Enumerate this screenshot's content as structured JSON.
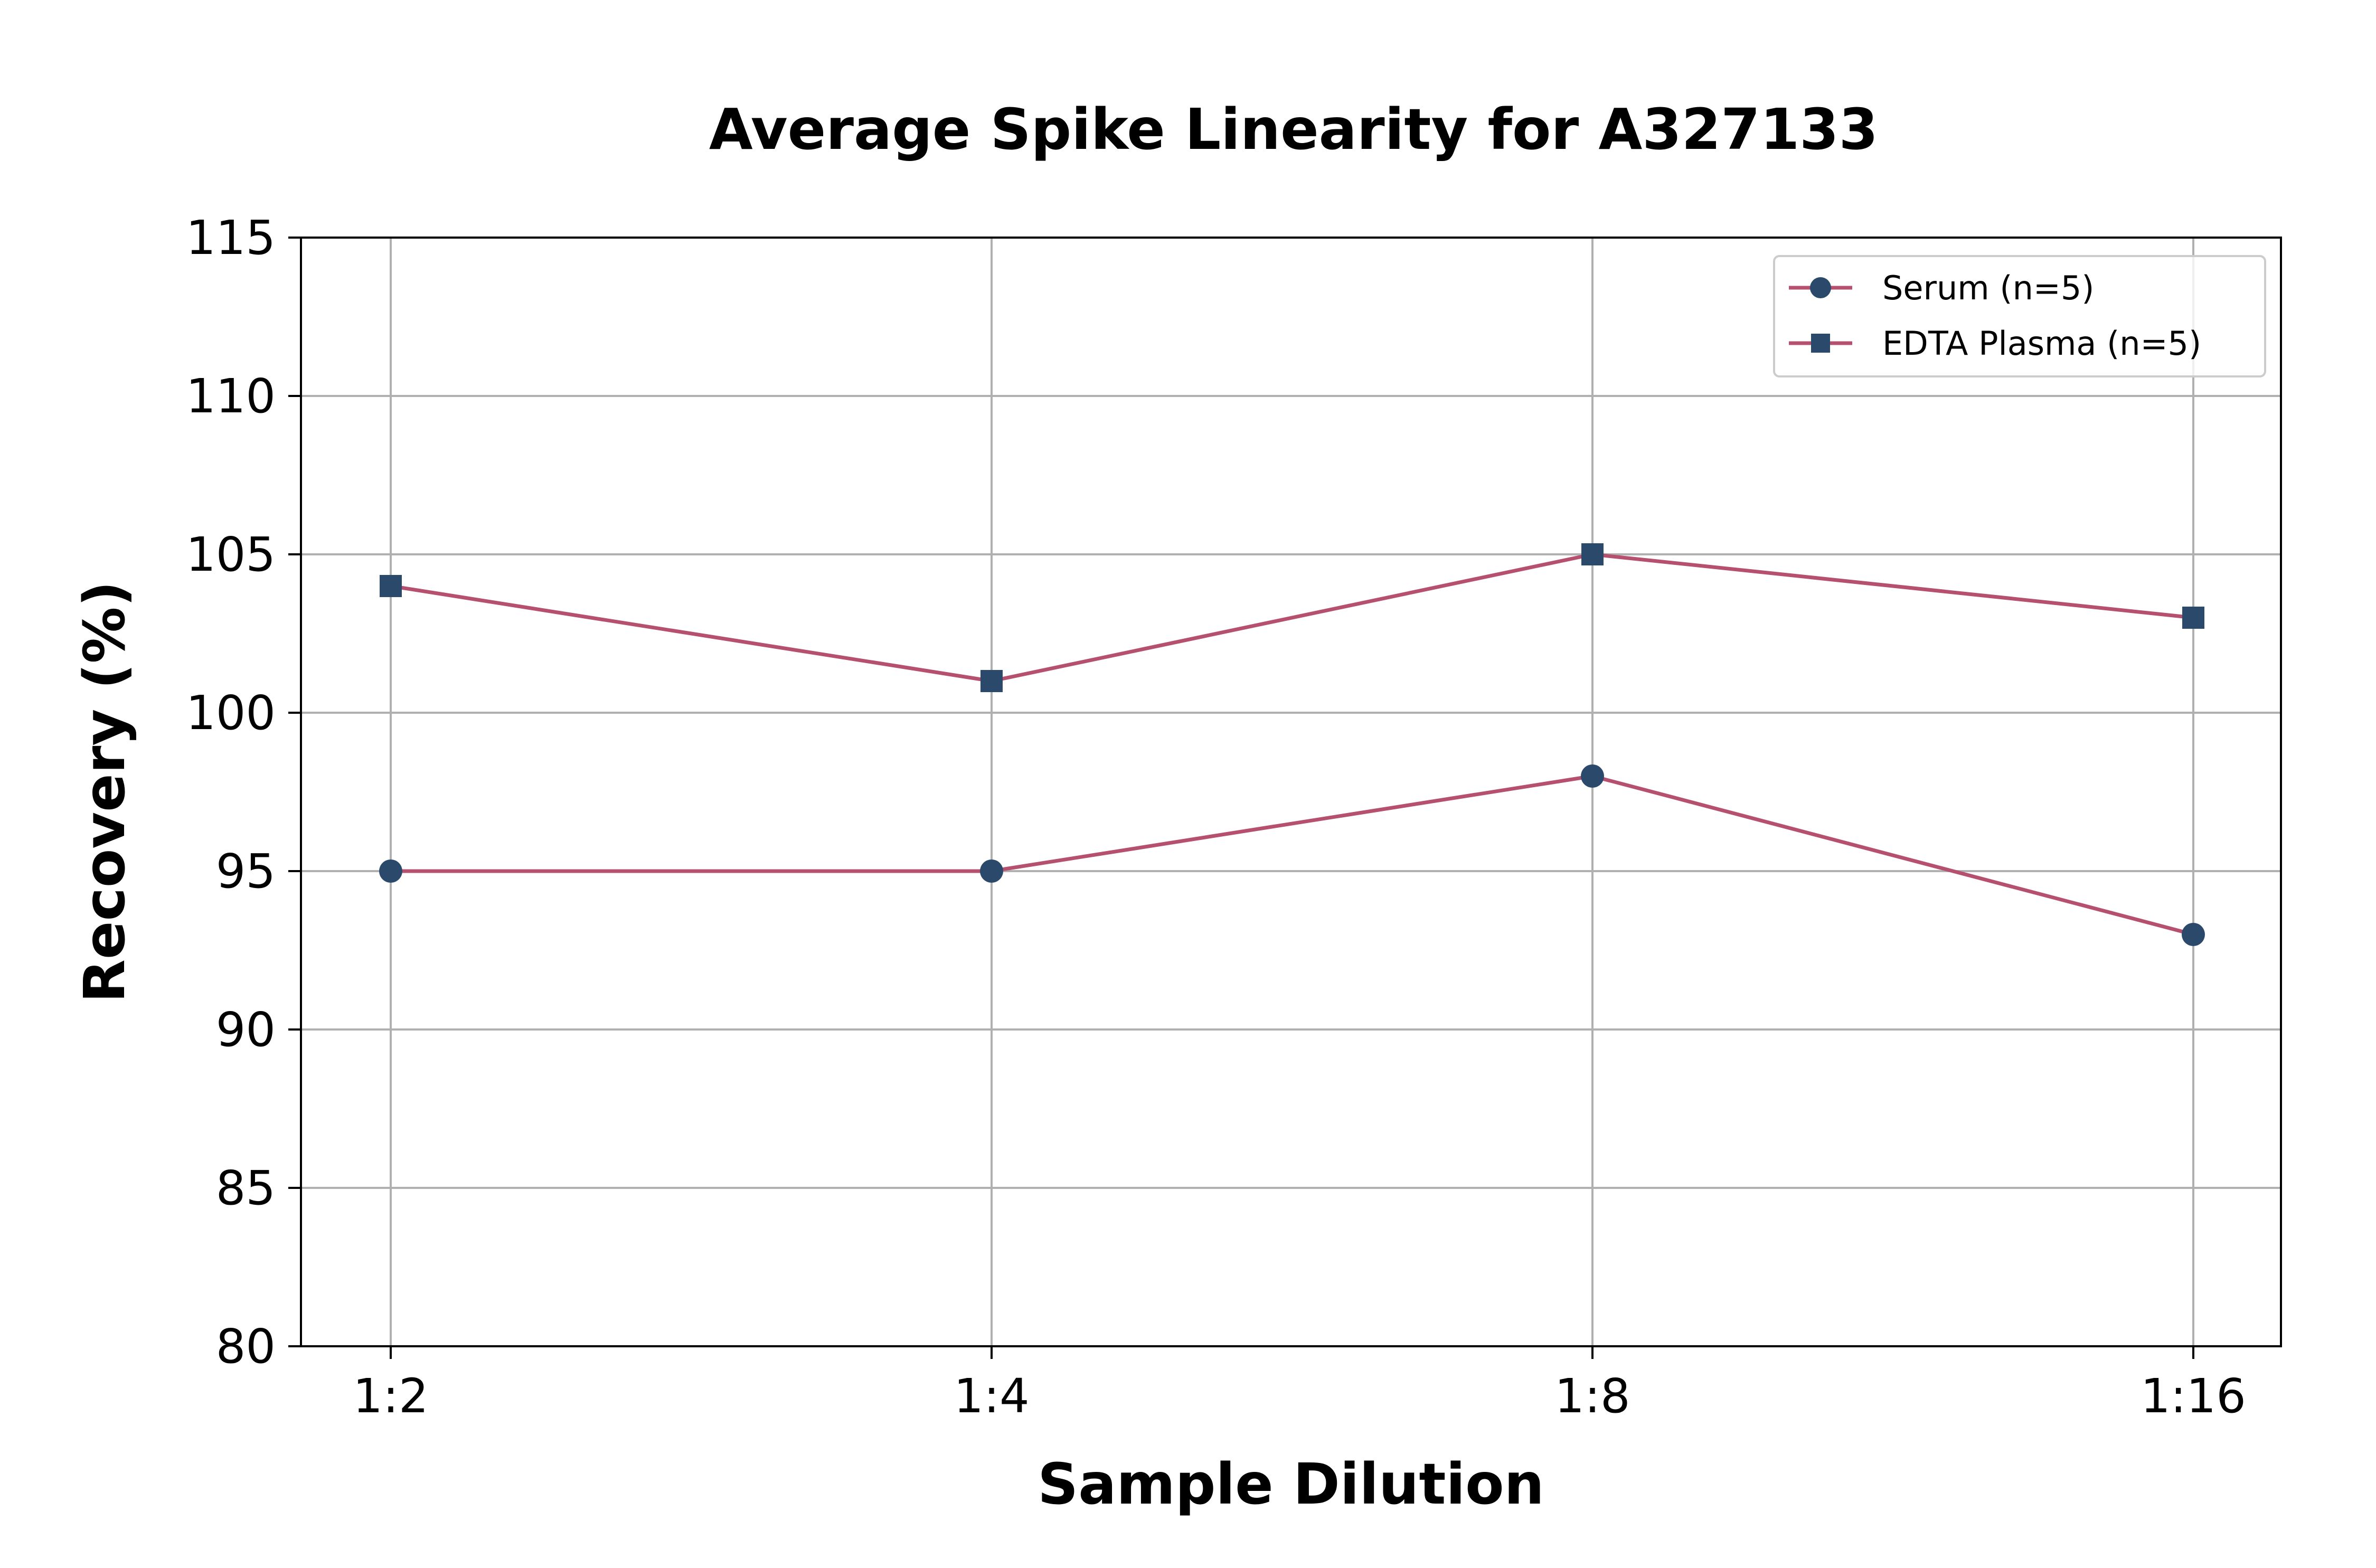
{
  "chart_data": {
    "type": "line",
    "title": "Average Spike Linearity for A327133",
    "xlabel": "Sample Dilution",
    "ylabel": "Recovery (%)",
    "categories": [
      "1:2",
      "1:4",
      "1:8",
      "1:16"
    ],
    "ylim": [
      80,
      115
    ],
    "yticks": [
      "80",
      "85",
      "90",
      "95",
      "100",
      "105",
      "110",
      "115"
    ],
    "grid": true,
    "legend_position": "top-right",
    "series": [
      {
        "name": "Serum (n=5)",
        "marker": "circle",
        "values": [
          95,
          95,
          98,
          93
        ]
      },
      {
        "name": "EDTA Plasma (n=5)",
        "marker": "square",
        "values": [
          104,
          101,
          105,
          103
        ]
      }
    ],
    "colors": {
      "line": "#b5506f",
      "marker": "#2b4a6b",
      "grid": "#b0b0b0",
      "axis": "#000000"
    }
  }
}
